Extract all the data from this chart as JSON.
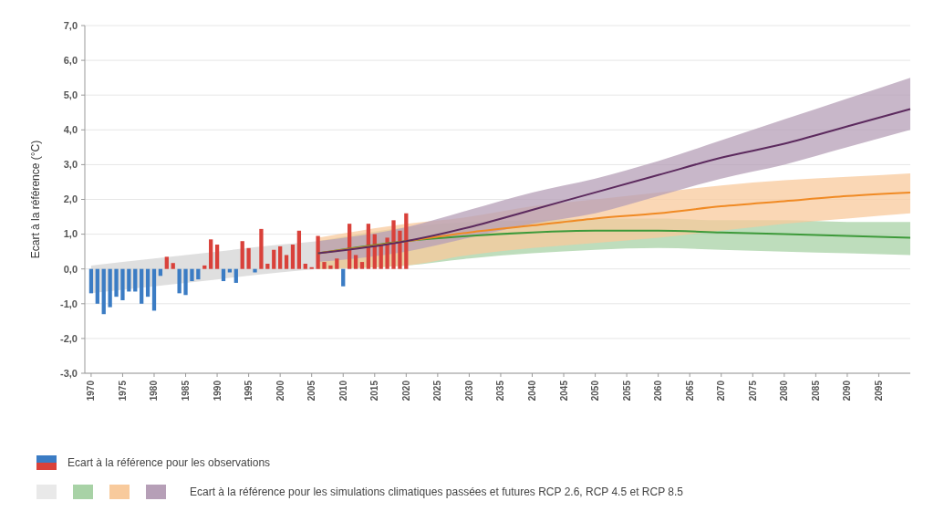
{
  "chart_data": {
    "type": "line",
    "ylabel": "Ecart à la référence (°C)",
    "xlim": [
      1969,
      2100
    ],
    "ylim": [
      -3,
      7
    ],
    "xticks": [
      1970,
      1975,
      1980,
      1985,
      1990,
      1995,
      2000,
      2005,
      2010,
      2015,
      2020,
      2025,
      2030,
      2035,
      2040,
      2045,
      2050,
      2055,
      2060,
      2065,
      2070,
      2075,
      2080,
      2085,
      2090,
      2095
    ],
    "yticks": [
      {
        "value": -3,
        "label": "-3,0"
      },
      {
        "value": -2,
        "label": "-2,0"
      },
      {
        "value": -1,
        "label": "-1,0"
      },
      {
        "value": 0,
        "label": "0,0"
      },
      {
        "value": 1,
        "label": "1,0"
      },
      {
        "value": 2,
        "label": "2,0"
      },
      {
        "value": 3,
        "label": "3,0"
      },
      {
        "value": 4,
        "label": "4,0"
      },
      {
        "value": 5,
        "label": "5,0"
      },
      {
        "value": 6,
        "label": "6,0"
      },
      {
        "value": 7,
        "label": "7,0"
      }
    ],
    "grid": "y",
    "legend": "bottom",
    "marker": "none",
    "line_style": "solid",
    "annotations": [
      "Ecart à la référence pour les simulations climatiques passées et futures RCP 2.6, RCP 4.5 et RCP 8.5"
    ],
    "series": [
      {
        "type": "area",
        "color": "#cfcfcf",
        "x": [
          1970,
          1980,
          1990,
          2000,
          2006,
          2020
        ],
        "values": [
          null,
          null,
          null,
          null,
          null,
          null
        ],
        "lower": [
          -0.7,
          -0.5,
          -0.3,
          -0.1,
          0.0,
          0.1
        ],
        "upper": [
          0.1,
          0.3,
          0.5,
          0.7,
          0.8,
          1.1
        ]
      },
      {
        "color": "#3d9a3a",
        "x": [
          2006,
          2020,
          2030,
          2040,
          2050,
          2060,
          2070,
          2080,
          2090,
          2100
        ],
        "values": [
          0.45,
          0.8,
          0.95,
          1.05,
          1.1,
          1.1,
          1.05,
          1.0,
          0.95,
          0.9
        ],
        "lower": [
          0.0,
          0.1,
          0.3,
          0.45,
          0.55,
          0.6,
          0.55,
          0.5,
          0.45,
          0.4
        ],
        "upper": [
          0.8,
          1.2,
          1.35,
          1.4,
          1.45,
          1.45,
          1.4,
          1.4,
          1.35,
          1.35
        ]
      },
      {
        "color": "#f08a24",
        "x": [
          2006,
          2020,
          2030,
          2040,
          2050,
          2060,
          2070,
          2080,
          2090,
          2100
        ],
        "values": [
          0.45,
          0.8,
          1.05,
          1.25,
          1.45,
          1.6,
          1.8,
          1.95,
          2.1,
          2.2
        ],
        "lower": [
          0.0,
          0.1,
          0.4,
          0.6,
          0.75,
          0.9,
          1.1,
          1.3,
          1.45,
          1.6
        ],
        "upper": [
          0.9,
          1.3,
          1.5,
          1.8,
          2.0,
          2.2,
          2.4,
          2.55,
          2.65,
          2.75
        ]
      },
      {
        "color": "#5c2a5e",
        "x": [
          2006,
          2020,
          2030,
          2040,
          2050,
          2060,
          2070,
          2080,
          2090,
          2100
        ],
        "values": [
          0.45,
          0.8,
          1.2,
          1.7,
          2.2,
          2.7,
          3.2,
          3.6,
          4.1,
          4.6
        ],
        "lower": [
          0.2,
          0.5,
          0.9,
          1.3,
          1.6,
          2.1,
          2.6,
          3.0,
          3.5,
          4.0
        ],
        "upper": [
          0.8,
          1.2,
          1.7,
          2.2,
          2.6,
          3.1,
          3.7,
          4.3,
          4.9,
          5.5
        ]
      },
      {
        "type": "bar",
        "name": "Ecart à la référence pour les observations",
        "x": [
          1970,
          1971,
          1972,
          1973,
          1974,
          1975,
          1976,
          1977,
          1978,
          1979,
          1980,
          1981,
          1982,
          1983,
          1984,
          1985,
          1986,
          1987,
          1988,
          1989,
          1990,
          1991,
          1992,
          1993,
          1994,
          1995,
          1996,
          1997,
          1998,
          1999,
          2000,
          2001,
          2002,
          2003,
          2004,
          2005,
          2006,
          2007,
          2008,
          2009,
          2010,
          2011,
          2012,
          2013,
          2014,
          2015,
          2016,
          2017,
          2018,
          2019,
          2020
        ],
        "values": [
          -0.7,
          -1.0,
          -1.3,
          -1.1,
          -0.8,
          -0.9,
          -0.65,
          -0.65,
          -1.0,
          -0.8,
          -1.2,
          -0.2,
          0.35,
          0.17,
          -0.7,
          -0.75,
          -0.35,
          -0.3,
          0.1,
          0.85,
          0.7,
          -0.35,
          -0.1,
          -0.4,
          0.8,
          0.6,
          -0.1,
          1.15,
          0.15,
          0.55,
          0.65,
          0.4,
          0.7,
          1.1,
          0.15,
          0.05,
          0.95,
          0.2,
          0.1,
          0.3,
          -0.5,
          1.3,
          0.4,
          0.2,
          1.3,
          1.0,
          0.7,
          0.9,
          1.4,
          1.1,
          1.6
        ],
        "colors": [
          "#3b7cc4",
          "#3b7cc4",
          "#3b7cc4",
          "#3b7cc4",
          "#3b7cc4",
          "#3b7cc4",
          "#3b7cc4",
          "#3b7cc4",
          "#3b7cc4",
          "#3b7cc4",
          "#3b7cc4",
          "#3b7cc4",
          "#d9413a",
          "#d9413a",
          "#3b7cc4",
          "#3b7cc4",
          "#3b7cc4",
          "#3b7cc4",
          "#d9413a",
          "#d9413a",
          "#d9413a",
          "#3b7cc4",
          "#3b7cc4",
          "#3b7cc4",
          "#d9413a",
          "#d9413a",
          "#3b7cc4",
          "#d9413a",
          "#d9413a",
          "#d9413a",
          "#d9413a",
          "#d9413a",
          "#d9413a",
          "#d9413a",
          "#d9413a",
          "#d9413a",
          "#d9413a",
          "#d9413a",
          "#d9413a",
          "#d9413a",
          "#3b7cc4",
          "#d9413a",
          "#d9413a",
          "#d9413a",
          "#d9413a",
          "#d9413a",
          "#d9413a",
          "#d9413a",
          "#d9413a",
          "#d9413a",
          "#d9413a"
        ]
      }
    ]
  }
}
